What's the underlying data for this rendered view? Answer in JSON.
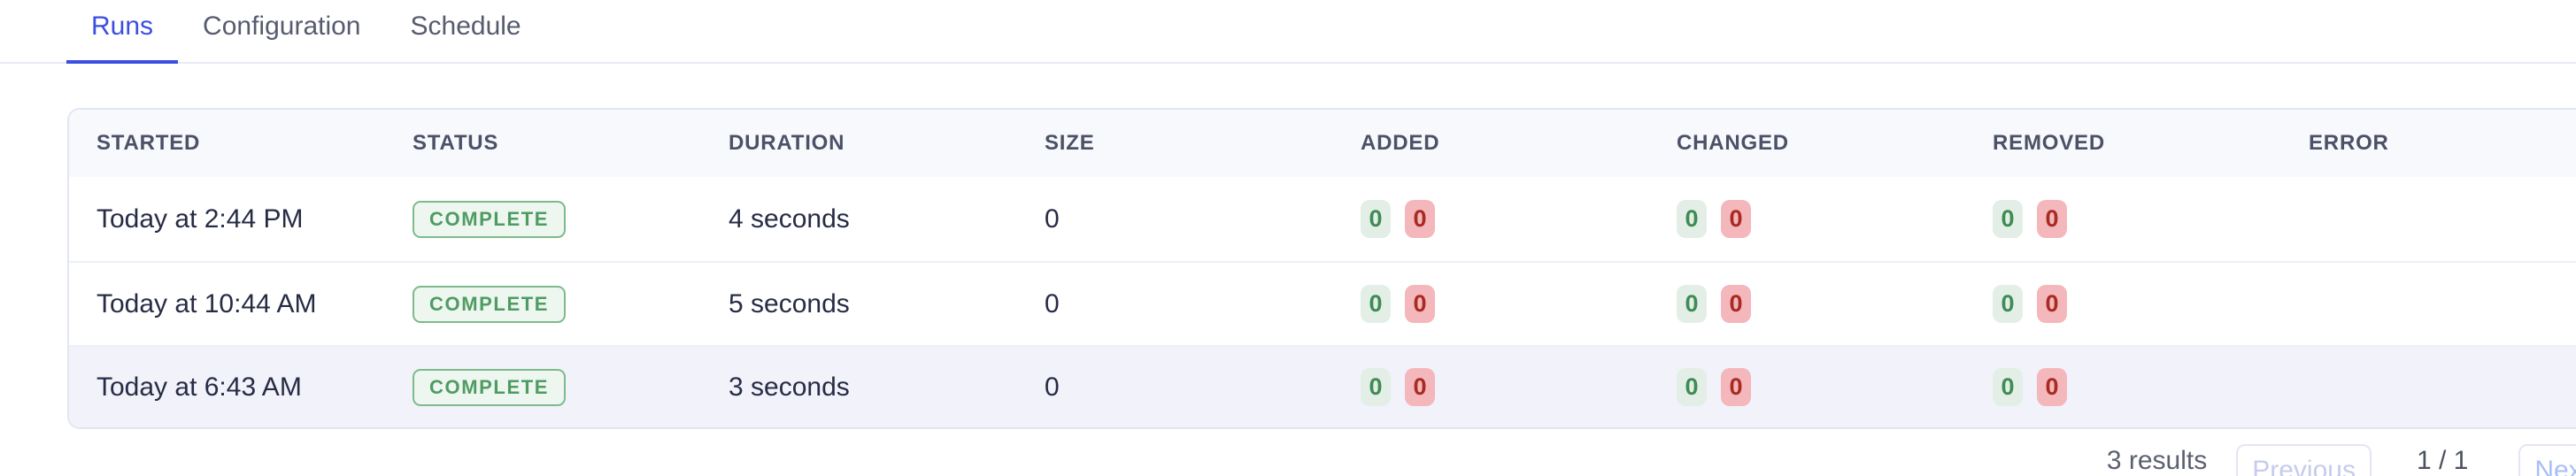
{
  "tabs": [
    {
      "label": "Runs",
      "active": true
    },
    {
      "label": "Configuration",
      "active": false
    },
    {
      "label": "Schedule",
      "active": false
    }
  ],
  "table": {
    "columns": [
      "STARTED",
      "STATUS",
      "DURATION",
      "SIZE",
      "ADDED",
      "CHANGED",
      "REMOVED",
      "ERROR"
    ],
    "rows": [
      {
        "started": "Today at 2:44 PM",
        "status": "COMPLETE",
        "duration": "4 seconds",
        "size": "0",
        "added_green": "0",
        "added_red": "0",
        "changed_green": "0",
        "changed_red": "0",
        "removed_green": "0",
        "removed_red": "0",
        "error": ""
      },
      {
        "started": "Today at 10:44 AM",
        "status": "COMPLETE",
        "duration": "5 seconds",
        "size": "0",
        "added_green": "0",
        "added_red": "0",
        "changed_green": "0",
        "changed_red": "0",
        "removed_green": "0",
        "removed_red": "0",
        "error": ""
      },
      {
        "started": "Today at 6:43 AM",
        "status": "COMPLETE",
        "duration": "3 seconds",
        "size": "0",
        "added_green": "0",
        "added_red": "0",
        "changed_green": "0",
        "changed_red": "0",
        "removed_green": "0",
        "removed_red": "0",
        "error": ""
      }
    ]
  },
  "pagination": {
    "results": "3 results",
    "previous_label": "Previous",
    "page": "1 / 1",
    "next_label": "Next"
  },
  "colors": {
    "accent_blue": "#3b4ee1",
    "status_complete_text": "#4f9c63",
    "status_complete_bg": "#edf6ef",
    "status_complete_border": "#7eba8c",
    "pill_green_bg": "#e3efe6",
    "pill_green_text": "#3e8c54",
    "pill_red_bg": "#f4b7bb",
    "pill_red_text": "#a82a20"
  }
}
